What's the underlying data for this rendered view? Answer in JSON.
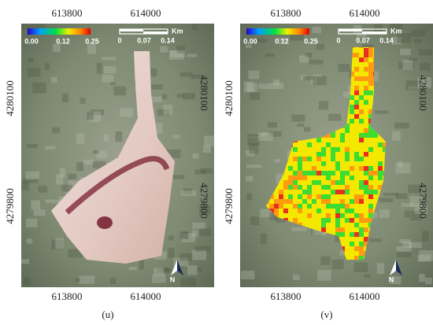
{
  "panels": [
    {
      "caption": "(u)",
      "x_top": [
        "613800",
        "614000"
      ],
      "x_bottom": [
        "613800",
        "614000"
      ],
      "y_left": [
        "4280100",
        "4279800"
      ],
      "y_right": [
        "4280100",
        "4279800"
      ],
      "colorbar": [
        "0.00",
        "0.12",
        "0.25"
      ],
      "scalebar": [
        "0",
        "0.07",
        "0.14"
      ],
      "scale_unit": "Km",
      "north": "N"
    },
    {
      "caption": "(v)",
      "x_top": [
        "613800",
        "614000"
      ],
      "x_bottom": [
        "613800",
        "614000"
      ],
      "y_left": [
        "4280100",
        "4279800"
      ],
      "y_right": [
        "4280100",
        "4279800"
      ],
      "colorbar": [
        "0.00",
        "0.12",
        "0.25"
      ],
      "scalebar": [
        "0",
        "0.07",
        "0.14"
      ],
      "scale_unit": "Km",
      "north": "N"
    }
  ]
}
